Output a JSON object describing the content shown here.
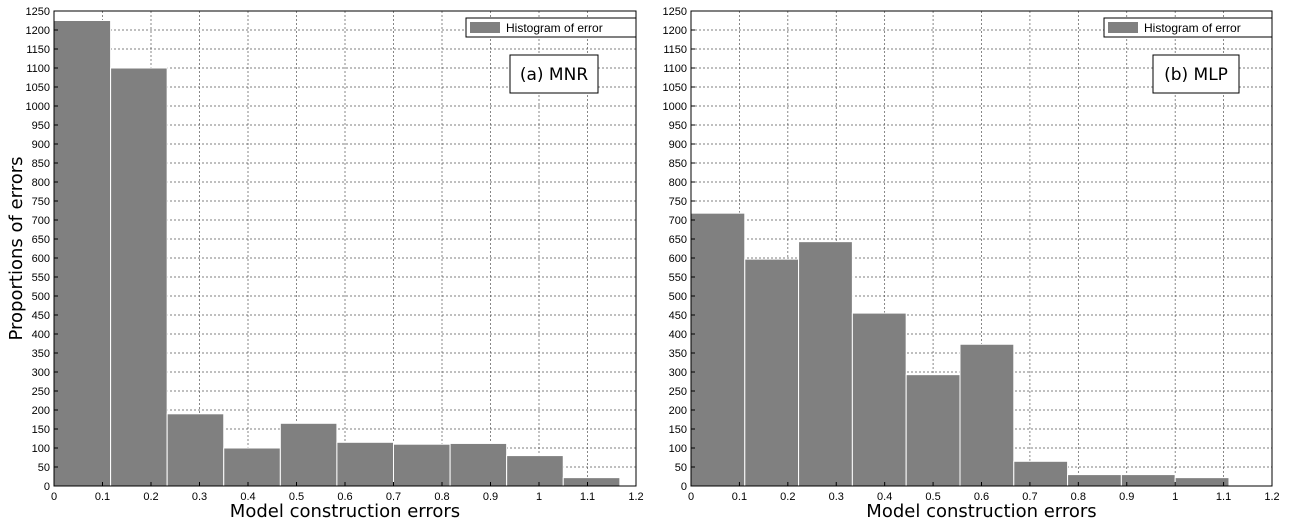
{
  "chart_data": [
    {
      "type": "bar",
      "panel_label": "(a) MNR",
      "legend": "Histogram of error",
      "xlabel": "Model construction errors",
      "ylabel": "Proportions of errors",
      "xlim": [
        0,
        1.2
      ],
      "ylim": [
        0,
        1250
      ],
      "xticks": [
        "0",
        "0.1",
        "0.2",
        "0.3",
        "0.4",
        "0.5",
        "0.6",
        "0.7",
        "0.8",
        "0.9",
        "1",
        "1.1",
        "1.2"
      ],
      "yticks": [
        "0",
        "50",
        "100",
        "150",
        "200",
        "250",
        "300",
        "350",
        "400",
        "450",
        "500",
        "550",
        "600",
        "650",
        "700",
        "750",
        "800",
        "850",
        "900",
        "950",
        "1000",
        "1050",
        "1100",
        "1150",
        "1200",
        "1250"
      ],
      "grid": true,
      "bin_edges": [
        0,
        0.1167,
        0.2333,
        0.35,
        0.4667,
        0.5833,
        0.7,
        0.8167,
        0.9333,
        1.05,
        1.1667
      ],
      "values": [
        1225,
        1100,
        190,
        100,
        165,
        115,
        110,
        112,
        80,
        22
      ],
      "bar_color": "#808080"
    },
    {
      "type": "bar",
      "panel_label": "(b) MLP",
      "legend": "Histogram of error",
      "xlabel": "Model construction errors",
      "ylabel": "",
      "xlim": [
        0,
        1.2
      ],
      "ylim": [
        0,
        1250
      ],
      "xticks": [
        "0",
        "0.1",
        "0.2",
        "0.3",
        "0.4",
        "0.5",
        "0.6",
        "0.7",
        "0.8",
        "0.9",
        "1",
        "1.1",
        "1.2"
      ],
      "yticks": [
        "0",
        "50",
        "100",
        "150",
        "200",
        "250",
        "300",
        "350",
        "400",
        "450",
        "500",
        "550",
        "600",
        "650",
        "700",
        "750",
        "800",
        "850",
        "900",
        "950",
        "1000",
        "1050",
        "1100",
        "1150",
        "1200",
        "1250"
      ],
      "grid": true,
      "bin_edges": [
        0,
        0.1111,
        0.2222,
        0.3333,
        0.4444,
        0.5556,
        0.6667,
        0.7778,
        0.8889,
        1.0,
        1.1111
      ],
      "values": [
        718,
        597,
        643,
        455,
        293,
        373,
        65,
        30,
        30,
        22
      ],
      "bar_color": "#808080"
    }
  ]
}
